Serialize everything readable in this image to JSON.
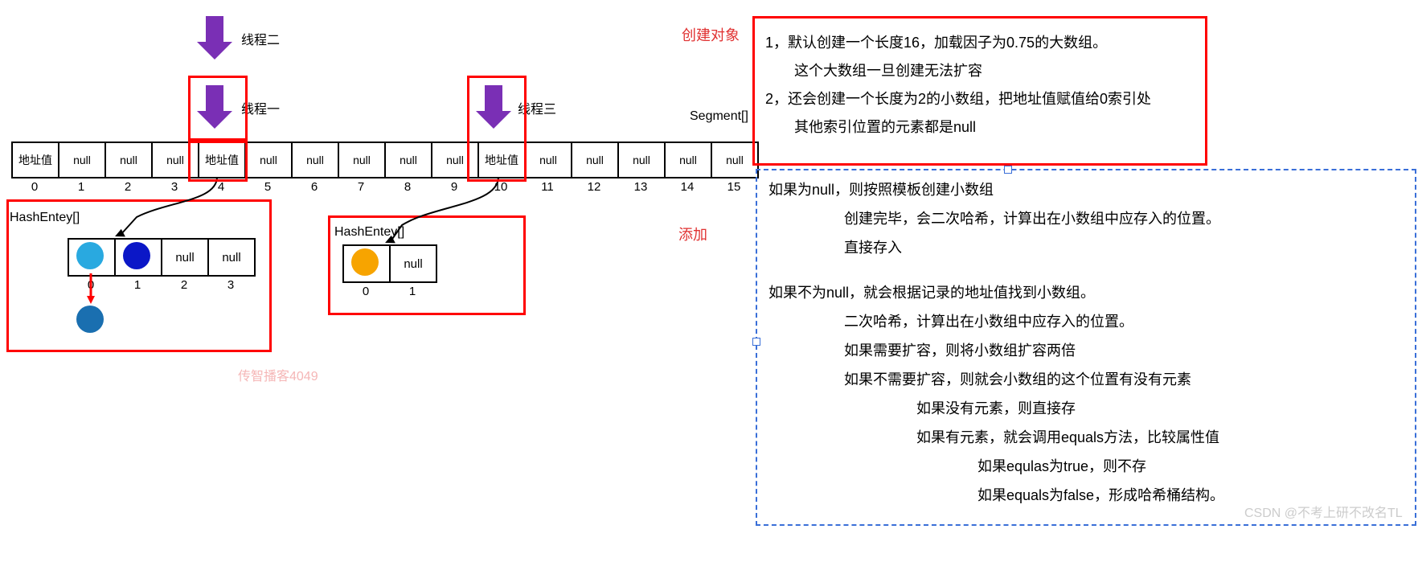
{
  "threads": {
    "t1": "线程一",
    "t2": "线程二",
    "t3": "线程三"
  },
  "segment_label": "Segment[]",
  "hashentry_label": "HashEntey[]",
  "segment_cells": [
    "地址值",
    "null",
    "null",
    "null",
    "地址值",
    "null",
    "null",
    "null",
    "null",
    "null",
    "地址值",
    "null",
    "null",
    "null",
    "null",
    "null"
  ],
  "segment_indices": [
    "0",
    "1",
    "2",
    "3",
    "4",
    "5",
    "6",
    "7",
    "8",
    "9",
    "10",
    "11",
    "12",
    "13",
    "14",
    "15"
  ],
  "small1_cells": [
    "",
    "",
    "null",
    "null"
  ],
  "small1_indices": [
    "0",
    "1",
    "2",
    "3"
  ],
  "small2_cells": [
    "",
    "null"
  ],
  "small2_indices": [
    "0",
    "1"
  ],
  "colors": {
    "arrow": "#7a2fb5",
    "red": "#ff0000",
    "blue_dash": "#3a6fd8",
    "circle_light": "#29a9e0",
    "circle_blue": "#0b17c7",
    "circle_darkblue": "#1a6fb0",
    "circle_orange": "#f7a400",
    "red_text": "#e03131"
  },
  "section_create": "创建对象",
  "section_add": "添加",
  "create_lines": [
    "1，默认创建一个长度16，加载因子为0.75的大数组。",
    "　　这个大数组一旦创建无法扩容",
    "2，还会创建一个长度为2的小数组，把地址值赋值给0索引处",
    "　　其他索引位置的元素都是null"
  ],
  "add_block": {
    "null_title": "如果为null，则按照模板创建小数组",
    "null_l1": "创建完毕，会二次哈希，计算出在小数组中应存入的位置。",
    "null_l2": "直接存入",
    "nn_title": "如果不为null，就会根据记录的地址值找到小数组。",
    "nn_l1": "二次哈希，计算出在小数组中应存入的位置。",
    "nn_l2": "如果需要扩容，则将小数组扩容两倍",
    "nn_l3": "如果不需要扩容，则就会小数组的这个位置有没有元素",
    "nn_l3a": "如果没有元素，则直接存",
    "nn_l3b": "如果有元素，就会调用equals方法，比较属性值",
    "nn_l3b1": "如果equlas为true，则不存",
    "nn_l3b2": "如果equals为false，形成哈希桶结构。"
  },
  "watermark_left": "传智播客4049",
  "watermark_right": "CSDN @不考上研不改名TL"
}
